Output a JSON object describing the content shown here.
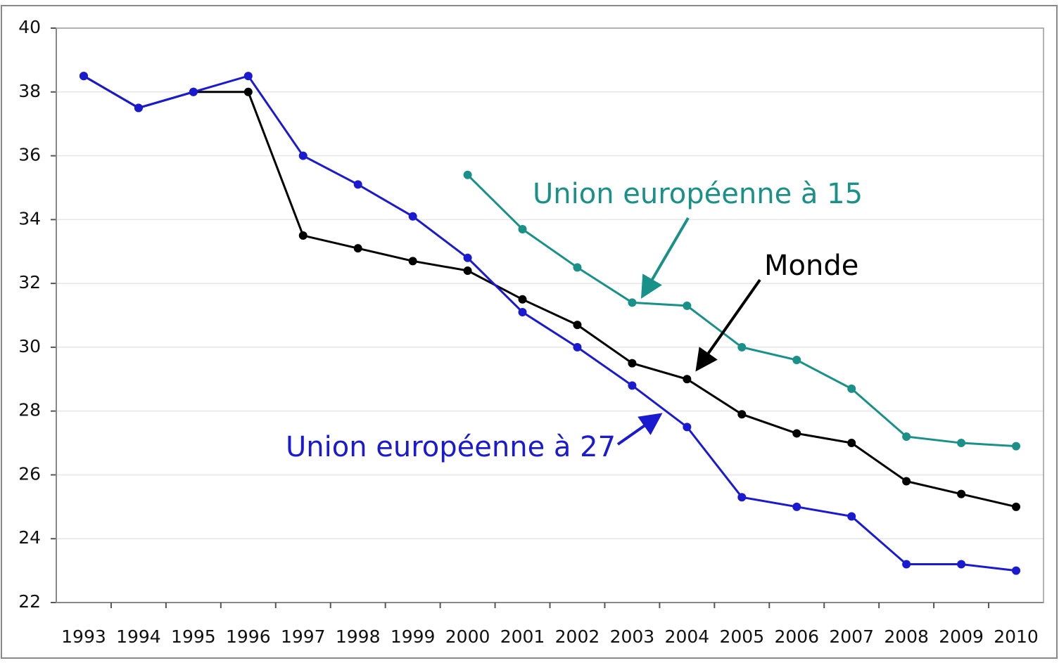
{
  "chart_data": {
    "type": "line",
    "categories": [
      "1993",
      "1994",
      "1995",
      "1996",
      "1997",
      "1998",
      "1999",
      "2000",
      "2001",
      "2002",
      "2003",
      "2004",
      "2005",
      "2006",
      "2007",
      "2008",
      "2009",
      "2010"
    ],
    "series": [
      {
        "name": "Monde",
        "color": "#000000",
        "values": [
          38.5,
          37.5,
          38.0,
          38.0,
          33.5,
          33.1,
          32.7,
          32.4,
          31.5,
          30.7,
          29.5,
          29.0,
          27.9,
          27.3,
          27.0,
          25.8,
          25.4,
          25.0
        ]
      },
      {
        "name": "Union européenne à 27",
        "color": "#1a1ad0",
        "values": [
          38.5,
          37.5,
          38.0,
          38.5,
          36.0,
          35.1,
          34.1,
          32.8,
          31.1,
          30.0,
          28.8,
          27.5,
          25.3,
          25.0,
          24.7,
          23.2,
          23.2,
          23.0
        ]
      },
      {
        "name": "Union européenne à 15",
        "color": "#1a9188",
        "values": [
          null,
          null,
          null,
          null,
          null,
          null,
          null,
          35.4,
          33.7,
          32.5,
          31.4,
          31.3,
          30.0,
          29.6,
          28.7,
          27.2,
          27.0,
          26.9
        ]
      }
    ],
    "ylim": [
      22,
      40
    ],
    "yticks": [
      22,
      24,
      26,
      28,
      30,
      32,
      34,
      36,
      38,
      40
    ],
    "grid": true
  }
}
